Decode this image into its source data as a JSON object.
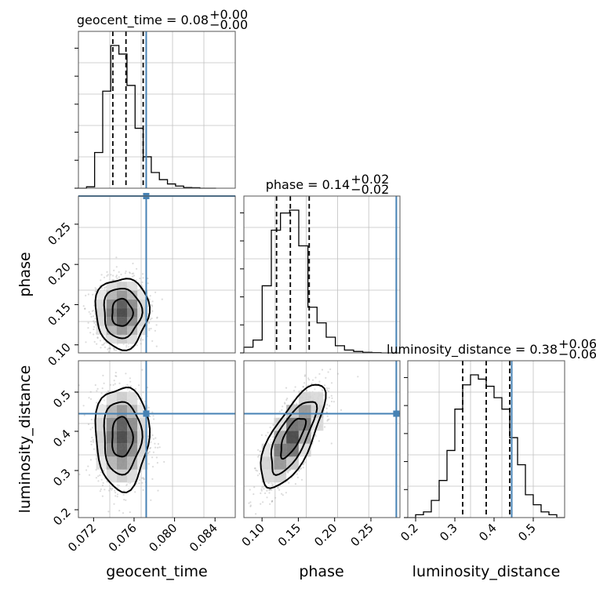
{
  "colors": {
    "truth": "#4682b4",
    "line": "#000000",
    "grid": "#c0c0c0",
    "points": "#9a9a9a"
  },
  "chart_data": {
    "type": "corner",
    "parameters": [
      "geocent_time",
      "phase",
      "luminosity_distance"
    ],
    "truths": {
      "geocent_time": 0.0772,
      "phase": 0.285,
      "luminosity_distance": 0.445
    },
    "grid": true,
    "panels": [
      {
        "id": "hist_geocent_time",
        "type": "histogram",
        "param": "geocent_time",
        "title": {
          "main": "geocent_time = 0.08",
          "sup": "+0.00",
          "sub": "−0.00"
        },
        "xlim": [
          0.0705,
          0.086
        ],
        "bin_edges": [
          0.0705,
          0.0713,
          0.0721,
          0.0729,
          0.0737,
          0.0745,
          0.0753,
          0.0761,
          0.0769,
          0.0777,
          0.0785,
          0.0793,
          0.0801,
          0.0809,
          0.0817,
          0.0825,
          0.0833,
          0.0841
        ],
        "counts": [
          0,
          0.01,
          0.25,
          0.68,
          1.0,
          0.94,
          0.72,
          0.42,
          0.22,
          0.11,
          0.06,
          0.03,
          0.015,
          0.005,
          0.003,
          0,
          0
        ],
        "quantiles": [
          0.0739,
          0.0752,
          0.0769
        ]
      },
      {
        "id": "hist_phase",
        "type": "histogram",
        "param": "phase",
        "title": {
          "main": "phase = 0.14",
          "sup": "+0.02",
          "sub": "−0.02"
        },
        "xlim": [
          0.075,
          0.29
        ],
        "bin_edges": [
          0.075,
          0.0876,
          0.1002,
          0.1128,
          0.1254,
          0.138,
          0.1506,
          0.1632,
          0.1758,
          0.1884,
          0.201,
          0.2136,
          0.2262,
          0.2388,
          0.2514,
          0.264,
          0.2766,
          0.29
        ],
        "counts": [
          0.04,
          0.09,
          0.47,
          0.86,
          0.98,
          1.0,
          0.75,
          0.32,
          0.21,
          0.11,
          0.05,
          0.02,
          0.01,
          0.004,
          0.002,
          0,
          0
        ],
        "quantiles": [
          0.12,
          0.139,
          0.165
        ]
      },
      {
        "id": "hist_luminosity_distance",
        "type": "histogram",
        "param": "luminosity_distance",
        "title": {
          "main": "luminosity_distance = 0.38",
          "sup": "+0.06",
          "sub": "−0.06"
        },
        "xlim": [
          0.18,
          0.58
        ],
        "bin_edges": [
          0.18,
          0.2,
          0.22,
          0.24,
          0.26,
          0.28,
          0.3,
          0.32,
          0.34,
          0.36,
          0.38,
          0.4,
          0.42,
          0.44,
          0.46,
          0.48,
          0.5,
          0.52,
          0.54,
          0.56,
          0.58
        ],
        "counts": [
          0.0,
          0.02,
          0.04,
          0.12,
          0.26,
          0.47,
          0.76,
          0.93,
          1.0,
          0.97,
          0.92,
          0.84,
          0.76,
          0.56,
          0.37,
          0.16,
          0.09,
          0.04,
          0.02,
          0.0
        ],
        "quantiles": [
          0.32,
          0.38,
          0.44
        ]
      },
      {
        "id": "scatter_geocent_time_phase",
        "type": "density",
        "x_param": "geocent_time",
        "y_param": "phase",
        "xlim": [
          0.0705,
          0.086
        ],
        "ylim": [
          0.09,
          0.285
        ],
        "mean": [
          0.0748,
          0.14
        ],
        "sd": [
          0.0012,
          0.02
        ],
        "rho": 0.0
      },
      {
        "id": "scatter_geocent_time_luminosity_distance",
        "type": "density",
        "x_param": "geocent_time",
        "y_param": "luminosity_distance",
        "xlim": [
          0.0705,
          0.086
        ],
        "ylim": [
          0.18,
          0.58
        ],
        "mean": [
          0.0748,
          0.385
        ],
        "sd": [
          0.0012,
          0.06
        ],
        "rho": 0.0
      },
      {
        "id": "scatter_phase_luminosity_distance",
        "type": "density",
        "x_param": "phase",
        "y_param": "luminosity_distance",
        "xlim": [
          0.075,
          0.29
        ],
        "ylim": [
          0.18,
          0.58
        ],
        "mean": [
          0.142,
          0.385
        ],
        "sd": [
          0.02,
          0.06
        ],
        "rho": 0.72
      }
    ],
    "xticks": {
      "geocent_time": [
        "0.072",
        "0.076",
        "0.080",
        "0.084"
      ],
      "phase": [
        "0.10",
        "0.15",
        "0.20",
        "0.25"
      ],
      "luminosity_distance": [
        "0.2",
        "0.3",
        "0.4",
        "0.5"
      ]
    },
    "yticks": {
      "phase": [
        "0.10",
        "0.15",
        "0.20",
        "0.25"
      ],
      "luminosity_distance": [
        "0.2",
        "0.3",
        "0.4",
        "0.5"
      ]
    },
    "xlabels": [
      "geocent_time",
      "phase",
      "luminosity_distance"
    ],
    "ylabels": [
      "phase",
      "luminosity_distance"
    ]
  }
}
